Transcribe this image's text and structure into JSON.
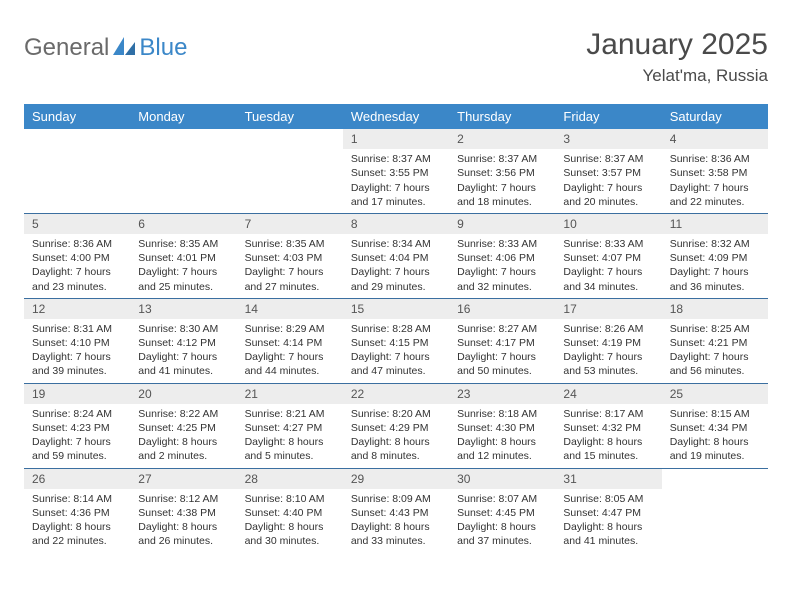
{
  "logo": {
    "part1": "General",
    "part2": "Blue"
  },
  "title": "January 2025",
  "location": "Yelat'ma, Russia",
  "colors": {
    "header_bg": "#3b87c8",
    "header_text": "#ffffff",
    "daynum_bg": "#ededed",
    "row_border": "#3b6fa0",
    "logo_gray": "#6a6a6a",
    "logo_blue": "#3b87c8",
    "body_text": "#333333",
    "title_text": "#4a4a4a",
    "page_bg": "#ffffff"
  },
  "day_headers": [
    "Sunday",
    "Monday",
    "Tuesday",
    "Wednesday",
    "Thursday",
    "Friday",
    "Saturday"
  ],
  "weeks": [
    [
      null,
      null,
      null,
      {
        "n": "1",
        "sr": "Sunrise: 8:37 AM",
        "ss": "Sunset: 3:55 PM",
        "d1": "Daylight: 7 hours",
        "d2": "and 17 minutes."
      },
      {
        "n": "2",
        "sr": "Sunrise: 8:37 AM",
        "ss": "Sunset: 3:56 PM",
        "d1": "Daylight: 7 hours",
        "d2": "and 18 minutes."
      },
      {
        "n": "3",
        "sr": "Sunrise: 8:37 AM",
        "ss": "Sunset: 3:57 PM",
        "d1": "Daylight: 7 hours",
        "d2": "and 20 minutes."
      },
      {
        "n": "4",
        "sr": "Sunrise: 8:36 AM",
        "ss": "Sunset: 3:58 PM",
        "d1": "Daylight: 7 hours",
        "d2": "and 22 minutes."
      }
    ],
    [
      {
        "n": "5",
        "sr": "Sunrise: 8:36 AM",
        "ss": "Sunset: 4:00 PM",
        "d1": "Daylight: 7 hours",
        "d2": "and 23 minutes."
      },
      {
        "n": "6",
        "sr": "Sunrise: 8:35 AM",
        "ss": "Sunset: 4:01 PM",
        "d1": "Daylight: 7 hours",
        "d2": "and 25 minutes."
      },
      {
        "n": "7",
        "sr": "Sunrise: 8:35 AM",
        "ss": "Sunset: 4:03 PM",
        "d1": "Daylight: 7 hours",
        "d2": "and 27 minutes."
      },
      {
        "n": "8",
        "sr": "Sunrise: 8:34 AM",
        "ss": "Sunset: 4:04 PM",
        "d1": "Daylight: 7 hours",
        "d2": "and 29 minutes."
      },
      {
        "n": "9",
        "sr": "Sunrise: 8:33 AM",
        "ss": "Sunset: 4:06 PM",
        "d1": "Daylight: 7 hours",
        "d2": "and 32 minutes."
      },
      {
        "n": "10",
        "sr": "Sunrise: 8:33 AM",
        "ss": "Sunset: 4:07 PM",
        "d1": "Daylight: 7 hours",
        "d2": "and 34 minutes."
      },
      {
        "n": "11",
        "sr": "Sunrise: 8:32 AM",
        "ss": "Sunset: 4:09 PM",
        "d1": "Daylight: 7 hours",
        "d2": "and 36 minutes."
      }
    ],
    [
      {
        "n": "12",
        "sr": "Sunrise: 8:31 AM",
        "ss": "Sunset: 4:10 PM",
        "d1": "Daylight: 7 hours",
        "d2": "and 39 minutes."
      },
      {
        "n": "13",
        "sr": "Sunrise: 8:30 AM",
        "ss": "Sunset: 4:12 PM",
        "d1": "Daylight: 7 hours",
        "d2": "and 41 minutes."
      },
      {
        "n": "14",
        "sr": "Sunrise: 8:29 AM",
        "ss": "Sunset: 4:14 PM",
        "d1": "Daylight: 7 hours",
        "d2": "and 44 minutes."
      },
      {
        "n": "15",
        "sr": "Sunrise: 8:28 AM",
        "ss": "Sunset: 4:15 PM",
        "d1": "Daylight: 7 hours",
        "d2": "and 47 minutes."
      },
      {
        "n": "16",
        "sr": "Sunrise: 8:27 AM",
        "ss": "Sunset: 4:17 PM",
        "d1": "Daylight: 7 hours",
        "d2": "and 50 minutes."
      },
      {
        "n": "17",
        "sr": "Sunrise: 8:26 AM",
        "ss": "Sunset: 4:19 PM",
        "d1": "Daylight: 7 hours",
        "d2": "and 53 minutes."
      },
      {
        "n": "18",
        "sr": "Sunrise: 8:25 AM",
        "ss": "Sunset: 4:21 PM",
        "d1": "Daylight: 7 hours",
        "d2": "and 56 minutes."
      }
    ],
    [
      {
        "n": "19",
        "sr": "Sunrise: 8:24 AM",
        "ss": "Sunset: 4:23 PM",
        "d1": "Daylight: 7 hours",
        "d2": "and 59 minutes."
      },
      {
        "n": "20",
        "sr": "Sunrise: 8:22 AM",
        "ss": "Sunset: 4:25 PM",
        "d1": "Daylight: 8 hours",
        "d2": "and 2 minutes."
      },
      {
        "n": "21",
        "sr": "Sunrise: 8:21 AM",
        "ss": "Sunset: 4:27 PM",
        "d1": "Daylight: 8 hours",
        "d2": "and 5 minutes."
      },
      {
        "n": "22",
        "sr": "Sunrise: 8:20 AM",
        "ss": "Sunset: 4:29 PM",
        "d1": "Daylight: 8 hours",
        "d2": "and 8 minutes."
      },
      {
        "n": "23",
        "sr": "Sunrise: 8:18 AM",
        "ss": "Sunset: 4:30 PM",
        "d1": "Daylight: 8 hours",
        "d2": "and 12 minutes."
      },
      {
        "n": "24",
        "sr": "Sunrise: 8:17 AM",
        "ss": "Sunset: 4:32 PM",
        "d1": "Daylight: 8 hours",
        "d2": "and 15 minutes."
      },
      {
        "n": "25",
        "sr": "Sunrise: 8:15 AM",
        "ss": "Sunset: 4:34 PM",
        "d1": "Daylight: 8 hours",
        "d2": "and 19 minutes."
      }
    ],
    [
      {
        "n": "26",
        "sr": "Sunrise: 8:14 AM",
        "ss": "Sunset: 4:36 PM",
        "d1": "Daylight: 8 hours",
        "d2": "and 22 minutes."
      },
      {
        "n": "27",
        "sr": "Sunrise: 8:12 AM",
        "ss": "Sunset: 4:38 PM",
        "d1": "Daylight: 8 hours",
        "d2": "and 26 minutes."
      },
      {
        "n": "28",
        "sr": "Sunrise: 8:10 AM",
        "ss": "Sunset: 4:40 PM",
        "d1": "Daylight: 8 hours",
        "d2": "and 30 minutes."
      },
      {
        "n": "29",
        "sr": "Sunrise: 8:09 AM",
        "ss": "Sunset: 4:43 PM",
        "d1": "Daylight: 8 hours",
        "d2": "and 33 minutes."
      },
      {
        "n": "30",
        "sr": "Sunrise: 8:07 AM",
        "ss": "Sunset: 4:45 PM",
        "d1": "Daylight: 8 hours",
        "d2": "and 37 minutes."
      },
      {
        "n": "31",
        "sr": "Sunrise: 8:05 AM",
        "ss": "Sunset: 4:47 PM",
        "d1": "Daylight: 8 hours",
        "d2": "and 41 minutes."
      },
      null
    ]
  ]
}
